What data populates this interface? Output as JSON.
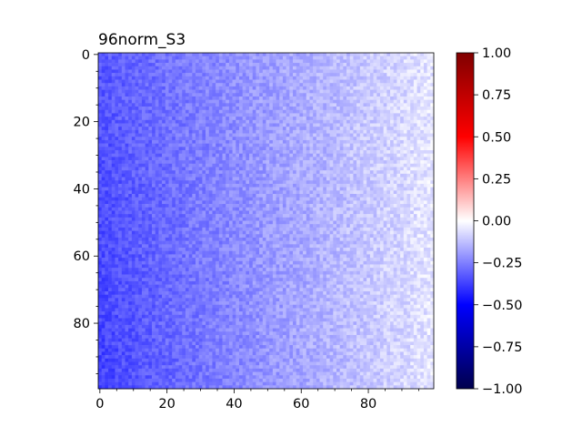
{
  "chart_data": {
    "type": "heatmap",
    "title": "96norm_S3",
    "rows": 100,
    "cols": 100,
    "x_ticks": [
      0,
      20,
      40,
      60,
      80
    ],
    "y_ticks": [
      0,
      20,
      40,
      60,
      80
    ],
    "colorbar": {
      "colormap": "seismic",
      "vmin": -1.0,
      "vmax": 1.0,
      "ticks": [
        1.0,
        0.75,
        0.5,
        0.25,
        0.0,
        -0.25,
        -0.5,
        -0.75,
        -1.0
      ],
      "tick_labels": [
        "1.00",
        "0.75",
        "0.50",
        "0.25",
        "0.00",
        "−0.25",
        "−0.50",
        "−0.75",
        "−1.00"
      ]
    },
    "value_model": {
      "description": "values increase left to right with noise",
      "left_edge": -0.33,
      "right_edge": -0.05,
      "bottom_shift": -0.04,
      "noise": 0.05
    }
  }
}
